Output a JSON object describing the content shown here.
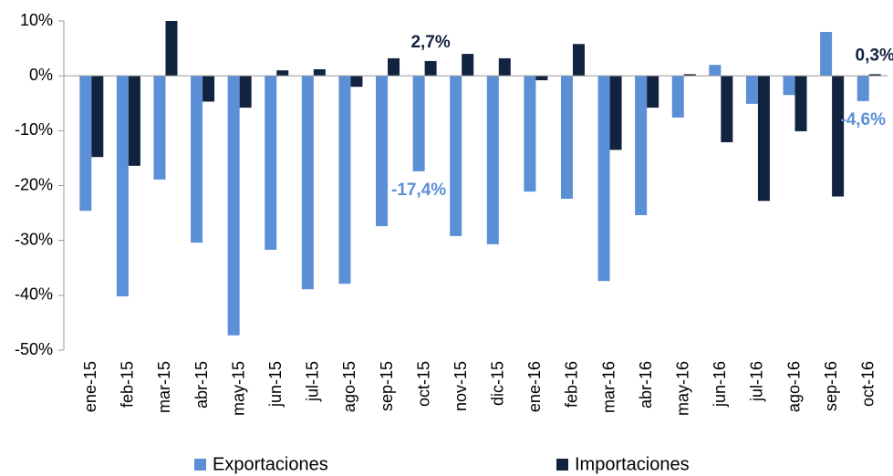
{
  "chart_data": {
    "type": "bar",
    "categories": [
      "ene-15",
      "feb-15",
      "mar-15",
      "abr-15",
      "may-15",
      "jun-15",
      "jul-15",
      "ago-15",
      "sep-15",
      "oct-15",
      "nov-15",
      "dic-15",
      "ene-16",
      "feb-16",
      "mar-16",
      "abr-16",
      "may-16",
      "jun-16",
      "jul-16",
      "ago-16",
      "sep-16",
      "oct-16"
    ],
    "series": [
      {
        "name": "Exportaciones",
        "color": "#5b8fd6",
        "values": [
          -24.6,
          -40.2,
          -18.9,
          -30.4,
          -47.3,
          -31.7,
          -38.9,
          -37.9,
          -27.4,
          -17.4,
          -29.2,
          -30.7,
          -21.1,
          -22.4,
          -37.4,
          -25.4,
          -7.6,
          2.0,
          -5.1,
          -3.5,
          8.0,
          -4.6
        ],
        "value_labels": [
          null,
          null,
          null,
          null,
          null,
          null,
          null,
          null,
          null,
          "-17,4%",
          null,
          null,
          null,
          null,
          null,
          null,
          null,
          null,
          null,
          null,
          null,
          "-4,6%"
        ]
      },
      {
        "name": "Importaciones",
        "color": "#12233f",
        "values": [
          -14.8,
          -16.4,
          10.0,
          -4.7,
          -5.8,
          1.0,
          1.2,
          -2.0,
          3.2,
          2.7,
          4.0,
          3.2,
          -0.8,
          5.8,
          -13.5,
          -5.8,
          0.3,
          -12.1,
          -22.8,
          -10.1,
          -22.0,
          0.3
        ],
        "value_labels": [
          null,
          null,
          null,
          null,
          null,
          null,
          null,
          null,
          null,
          "2,7%",
          null,
          null,
          null,
          null,
          null,
          null,
          null,
          null,
          null,
          null,
          null,
          "0,3%"
        ]
      }
    ],
    "ylim": [
      -50,
      10
    ],
    "yticks": [
      {
        "value": -50,
        "label": "-50%"
      },
      {
        "value": -40,
        "label": "-40%"
      },
      {
        "value": -30,
        "label": "-30%"
      },
      {
        "value": -20,
        "label": "-20%"
      },
      {
        "value": -10,
        "label": "-10%"
      },
      {
        "value": 0,
        "label": "0%"
      },
      {
        "value": 10,
        "label": "10%"
      }
    ],
    "legend": "bottom"
  }
}
